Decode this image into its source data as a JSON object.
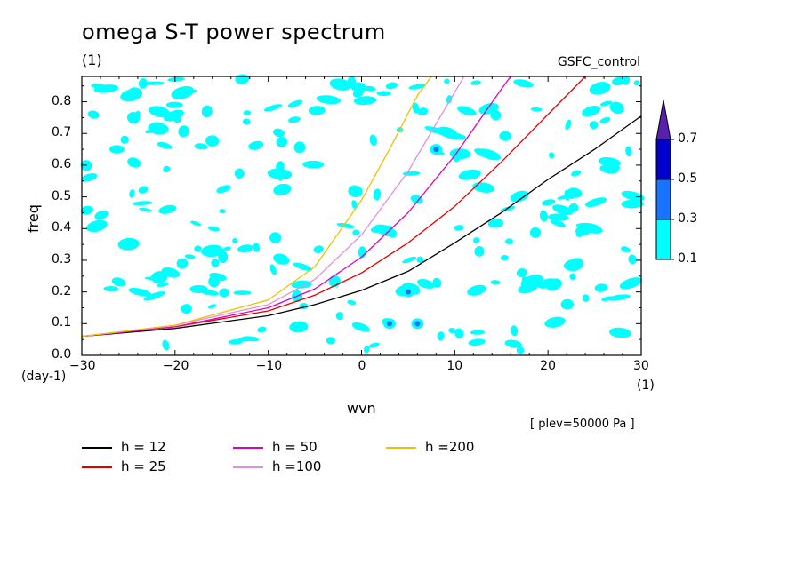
{
  "chart_data": {
    "type": "line",
    "title": "omega S-T power spectrum",
    "subtitle": "(1)",
    "case_label": "GSFC_control",
    "xlabel": "wvn",
    "ylabel": "freq",
    "x_unit": "(1)",
    "y_unit": "(day-1)",
    "xlim": [
      -30,
      30
    ],
    "ylim": [
      0,
      0.88
    ],
    "xticks": [
      -30,
      -20,
      -10,
      0,
      10,
      20,
      30
    ],
    "yticks": [
      0.0,
      0.1,
      0.2,
      0.3,
      0.4,
      0.5,
      0.6,
      0.7,
      0.8
    ],
    "annotation": "[ plev=50000 Pa ]",
    "colorbar": {
      "levels": [
        0.1,
        0.3,
        0.5,
        0.7
      ],
      "colors": [
        "#00ffff",
        "#1874ff",
        "#0000cd",
        "#5a1fb0"
      ]
    },
    "series": [
      {
        "name": "h = 12",
        "h": 12,
        "color": "#000000",
        "x": [
          -30,
          -20,
          -10,
          -5,
          0,
          5,
          10,
          15,
          20,
          25,
          30
        ],
        "y": [
          0.06,
          0.085,
          0.125,
          0.16,
          0.205,
          0.265,
          0.355,
          0.45,
          0.555,
          0.65,
          0.755
        ]
      },
      {
        "name": "h = 25",
        "h": 25,
        "color": "#e00000",
        "x": [
          -30,
          -20,
          -10,
          -5,
          0,
          5,
          10,
          15,
          20,
          24
        ],
        "y": [
          0.06,
          0.09,
          0.14,
          0.19,
          0.26,
          0.355,
          0.47,
          0.61,
          0.76,
          0.88
        ]
      },
      {
        "name": "h = 50",
        "h": 50,
        "color": "#e000c0",
        "x": [
          -30,
          -20,
          -10,
          -5,
          0,
          5,
          10,
          15,
          16
        ],
        "y": [
          0.06,
          0.09,
          0.15,
          0.21,
          0.31,
          0.45,
          0.63,
          0.84,
          0.88
        ]
      },
      {
        "name": "h =100",
        "h": 100,
        "color": "#e090e0",
        "x": [
          -30,
          -20,
          -10,
          -5,
          0,
          5,
          10,
          11
        ],
        "y": [
          0.06,
          0.095,
          0.16,
          0.24,
          0.38,
          0.58,
          0.83,
          0.88
        ]
      },
      {
        "name": "h =200",
        "h": 200,
        "color": "#f0c000",
        "x": [
          -30,
          -20,
          -10,
          -5,
          0,
          3,
          6,
          7.5
        ],
        "y": [
          0.06,
          0.095,
          0.175,
          0.28,
          0.49,
          0.65,
          0.82,
          0.88
        ]
      }
    ]
  }
}
